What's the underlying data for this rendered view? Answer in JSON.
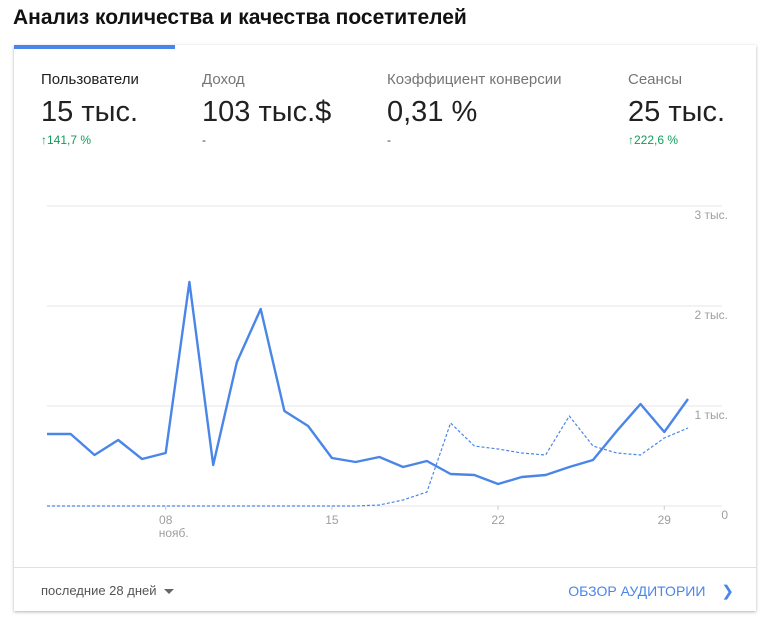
{
  "title": "Анализ количества и качества посетителей",
  "metrics": [
    {
      "label": "Пользователи",
      "value": "15 тыс.",
      "change": "141,7 %",
      "direction": "up"
    },
    {
      "label": "Доход",
      "value": "103 тыс.$",
      "change": "-"
    },
    {
      "label": "Коэффициент конверсии",
      "value": "0,31 %",
      "change": "-"
    },
    {
      "label": "Сеансы",
      "value": "25 тыс.",
      "change": "222,6 %",
      "direction": "up"
    }
  ],
  "footer": {
    "range": "последние 28 дней",
    "overview": "ОБЗОР АУДИТОРИИ"
  },
  "colors": {
    "accent": "#4a86e8",
    "positive": "#0f9d58"
  },
  "chart_data": {
    "type": "line",
    "x": [
      "03",
      "04",
      "05",
      "06",
      "07",
      "08",
      "09",
      "10",
      "11",
      "12",
      "13",
      "14",
      "15",
      "16",
      "17",
      "18",
      "19",
      "20",
      "21",
      "22",
      "23",
      "24",
      "25",
      "26",
      "27",
      "28",
      "29",
      "30"
    ],
    "x_ticks": [
      {
        "day": "08",
        "sub": "нояб."
      },
      {
        "day": "15"
      },
      {
        "day": "22"
      },
      {
        "day": "29"
      }
    ],
    "y_ticks": [
      "0",
      "1 тыс.",
      "2 тыс.",
      "3 тыс."
    ],
    "ylim": [
      0,
      3000
    ],
    "grid": true,
    "series": [
      {
        "style": "solid",
        "values": [
          720,
          720,
          510,
          660,
          470,
          530,
          2240,
          410,
          1440,
          1970,
          950,
          800,
          480,
          440,
          490,
          390,
          450,
          320,
          310,
          220,
          290,
          310,
          390,
          460,
          750,
          1020,
          740,
          1070
        ]
      },
      {
        "style": "dashed",
        "values": [
          0,
          0,
          0,
          0,
          0,
          0,
          0,
          0,
          0,
          0,
          0,
          0,
          0,
          0,
          10,
          60,
          140,
          830,
          600,
          570,
          530,
          510,
          900,
          600,
          530,
          510,
          680,
          780
        ]
      }
    ]
  }
}
